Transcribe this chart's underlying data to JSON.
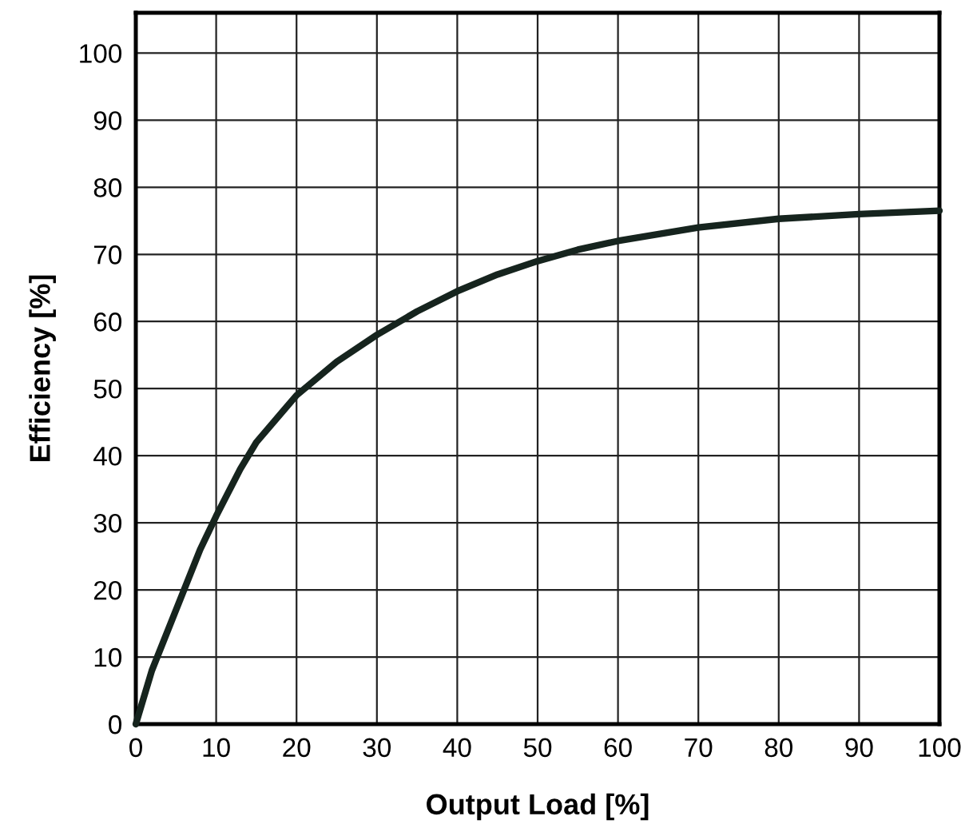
{
  "chart_data": {
    "type": "line",
    "xlabel": "Output Load [%]",
    "ylabel": "Efficiency [%]",
    "x": [
      0,
      2,
      5,
      8,
      10,
      13,
      15,
      20,
      25,
      30,
      35,
      40,
      45,
      50,
      55,
      60,
      70,
      80,
      90,
      100
    ],
    "series": [
      {
        "color": "#16241e",
        "values": [
          0,
          8,
          17,
          26,
          31,
          38,
          42,
          49,
          54,
          58,
          61.5,
          64.5,
          67,
          69,
          70.7,
          72,
          74,
          75.3,
          76,
          76.5
        ]
      }
    ],
    "xlim": [
      0,
      100
    ],
    "ylim": [
      0,
      106
    ],
    "xticks": [
      0,
      10,
      20,
      30,
      40,
      50,
      60,
      70,
      80,
      90,
      100
    ],
    "yticks": [
      0,
      10,
      20,
      30,
      40,
      50,
      60,
      70,
      80,
      90,
      100
    ],
    "grid": true,
    "marker": "none",
    "line_style": "solid"
  }
}
